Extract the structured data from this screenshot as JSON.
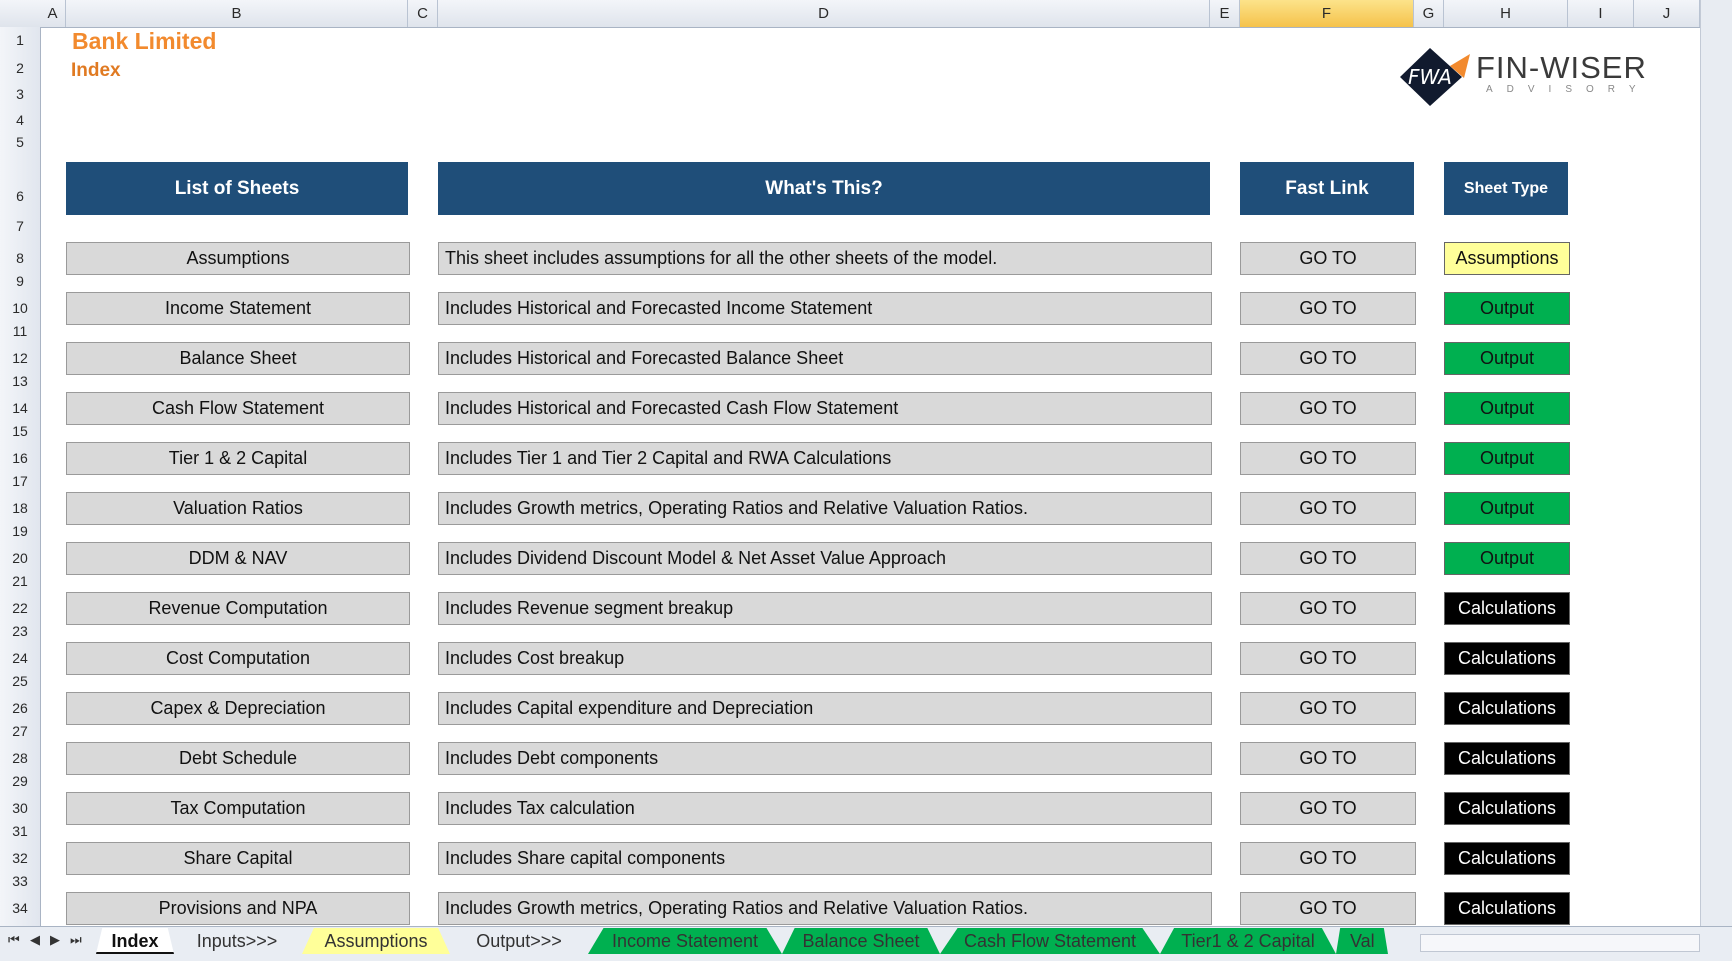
{
  "window": {
    "columns": [
      "A",
      "B",
      "C",
      "D",
      "E",
      "F",
      "G",
      "H",
      "I",
      "J"
    ],
    "rows": [
      "1",
      "2",
      "3",
      "4",
      "5",
      "6",
      "7",
      "8",
      "9",
      "10",
      "11",
      "12",
      "13",
      "14",
      "15",
      "16",
      "17",
      "18",
      "19",
      "20",
      "21",
      "22",
      "23",
      "24",
      "25",
      "26",
      "27",
      "28",
      "29",
      "30",
      "31",
      "32",
      "33",
      "34"
    ]
  },
  "header": {
    "title": "Bank Limited",
    "subtitle": "Index"
  },
  "logo": {
    "mark": "FWA",
    "name": "FIN-WISER",
    "tagline": "ADVISORY"
  },
  "table": {
    "headers": {
      "sheets": "List of Sheets",
      "what": "What's This?",
      "link": "Fast Link",
      "type": "Sheet Type"
    },
    "rows": [
      {
        "sheet": "Assumptions",
        "desc": "This sheet includes assumptions for all the other sheets of the model.",
        "link": "GO TO",
        "type": "Assumptions"
      },
      {
        "sheet": "Income Statement",
        "desc": "Includes Historical and Forecasted Income Statement",
        "link": "GO TO",
        "type": "Output"
      },
      {
        "sheet": "Balance Sheet",
        "desc": "Includes Historical and Forecasted Balance Sheet",
        "link": "GO TO",
        "type": "Output"
      },
      {
        "sheet": "Cash Flow Statement",
        "desc": "Includes Historical and Forecasted Cash Flow Statement",
        "link": "GO TO",
        "type": "Output"
      },
      {
        "sheet": "Tier 1 & 2 Capital",
        "desc": "Includes Tier 1 and Tier 2 Capital and RWA Calculations",
        "link": "GO TO",
        "type": "Output"
      },
      {
        "sheet": "Valuation Ratios",
        "desc": "Includes Growth metrics, Operating Ratios and Relative Valuation Ratios.",
        "link": "GO TO",
        "type": "Output"
      },
      {
        "sheet": "DDM & NAV",
        "desc": "Includes Dividend Discount Model & Net Asset Value Approach",
        "link": "GO TO",
        "type": "Output"
      },
      {
        "sheet": "Revenue Computation",
        "desc": "Includes Revenue segment breakup",
        "link": "GO TO",
        "type": "Calculations"
      },
      {
        "sheet": "Cost Computation",
        "desc": "Includes Cost breakup",
        "link": "GO TO",
        "type": "Calculations"
      },
      {
        "sheet": "Capex & Depreciation",
        "desc": "Includes Capital expenditure and Depreciation",
        "link": "GO TO",
        "type": "Calculations"
      },
      {
        "sheet": "Debt Schedule",
        "desc": "Includes Debt components",
        "link": "GO TO",
        "type": "Calculations"
      },
      {
        "sheet": "Tax Computation",
        "desc": "Includes Tax calculation",
        "link": "GO TO",
        "type": "Calculations"
      },
      {
        "sheet": "Share Capital",
        "desc": "Includes Share capital components",
        "link": "GO TO",
        "type": "Calculations"
      },
      {
        "sheet": "Provisions and NPA",
        "desc": "Includes Growth metrics, Operating Ratios and Relative Valuation Ratios.",
        "link": "GO TO",
        "type": "Calculations"
      }
    ]
  },
  "type_colors": {
    "Assumptions": {
      "bg": "#ffff99",
      "fg": "#111111"
    },
    "Output": {
      "bg": "#00b050",
      "fg": "#111111"
    },
    "Calculations": {
      "bg": "#000000",
      "fg": "#ffffff"
    }
  },
  "tabs": [
    {
      "label": "Index",
      "color": "#ffffff",
      "active": true
    },
    {
      "label": "Inputs>>>",
      "color": "#e9edf3",
      "active": false
    },
    {
      "label": "Assumptions",
      "color": "#ffff99",
      "active": false
    },
    {
      "label": "Output>>>",
      "color": "#e9edf3",
      "active": false
    },
    {
      "label": "Income Statement",
      "color": "#00b050",
      "active": false
    },
    {
      "label": "Balance Sheet",
      "color": "#00b050",
      "active": false
    },
    {
      "label": "Cash Flow Statement",
      "color": "#00b050",
      "active": false
    },
    {
      "label": "Tier1 & 2 Capital",
      "color": "#00b050",
      "active": false
    },
    {
      "label": "Val",
      "color": "#00b050",
      "active": false
    }
  ],
  "nav": {
    "first": "⏮",
    "prev": "◀",
    "next": "▶",
    "last": "⏭"
  }
}
